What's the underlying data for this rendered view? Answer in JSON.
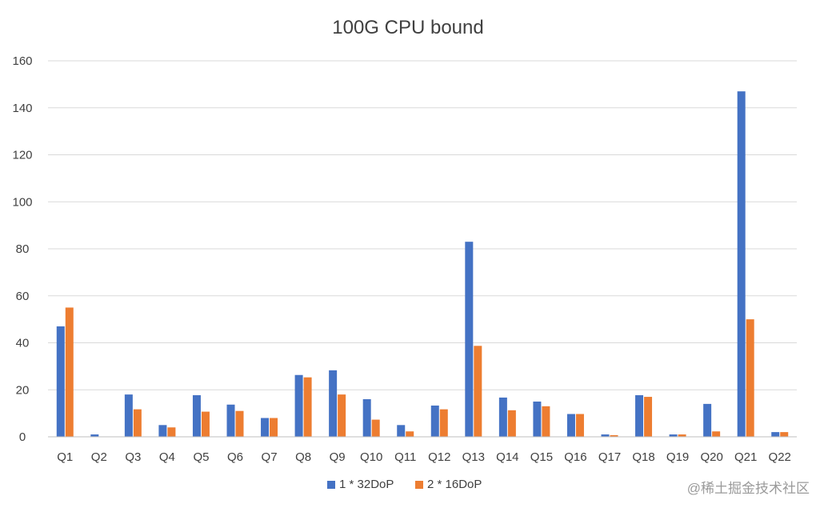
{
  "chart_data": {
    "type": "bar",
    "title": "100G CPU bound",
    "xlabel": "",
    "ylabel": "",
    "ylim": [
      0,
      160
    ],
    "yticks": [
      0,
      20,
      40,
      60,
      80,
      100,
      120,
      140,
      160
    ],
    "grid": true,
    "legend_position": "bottom",
    "categories": [
      "Q1",
      "Q2",
      "Q3",
      "Q4",
      "Q5",
      "Q6",
      "Q7",
      "Q8",
      "Q9",
      "Q10",
      "Q11",
      "Q12",
      "Q13",
      "Q14",
      "Q15",
      "Q16",
      "Q17",
      "Q18",
      "Q19",
      "Q20",
      "Q21",
      "Q22"
    ],
    "series": [
      {
        "name": "1 * 32DoP",
        "color": "#4472c4",
        "values": [
          47,
          1,
          18,
          5,
          17.7,
          13.7,
          8,
          26.3,
          28.3,
          16,
          5,
          13.3,
          83,
          16.7,
          15,
          9.7,
          1,
          17.7,
          1,
          14,
          147,
          2
        ]
      },
      {
        "name": "2 * 16DoP",
        "color": "#ed7d31",
        "values": [
          55,
          0,
          11.7,
          4,
          10.7,
          11,
          8,
          25.3,
          18,
          7.3,
          2.3,
          11.7,
          38.7,
          11.3,
          13,
          9.7,
          0.7,
          17,
          1,
          2.3,
          50,
          2
        ]
      }
    ]
  },
  "watermark": "@稀土掘金技术社区"
}
